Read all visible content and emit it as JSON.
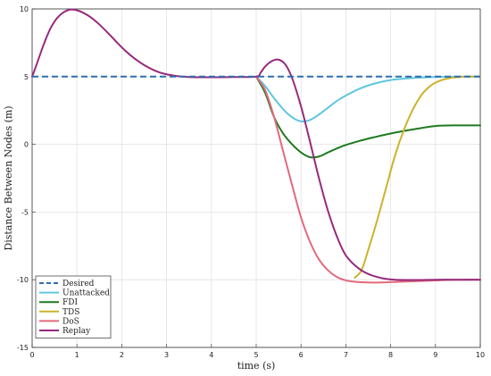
{
  "chart_data": {
    "type": "line",
    "xlabel": "time (s)",
    "ylabel": "Distance Between Nodes (m)",
    "xlim": [
      0,
      10
    ],
    "ylim": [
      -15,
      10
    ],
    "xticks": [
      "0",
      "1",
      "2",
      "3",
      "4",
      "5",
      "6",
      "7",
      "8",
      "9",
      "10"
    ],
    "yticks": [
      "10",
      "5",
      "0",
      "-5",
      "-10",
      "-15"
    ],
    "grid": true,
    "legend_position": "bottom-left",
    "series": [
      {
        "name": "Desired",
        "color": "#2e6fb0",
        "style": "dashed",
        "x": [
          0,
          10
        ],
        "y": [
          5,
          5
        ]
      },
      {
        "name": "Unattacked",
        "color": "#5ec6e0",
        "style": "solid",
        "x": [
          5.0,
          5.2,
          5.4,
          5.6,
          5.8,
          6.0,
          6.2,
          6.4,
          6.6,
          6.8,
          7.0,
          7.3,
          7.6,
          8.0,
          8.5,
          9.0,
          9.5,
          10.0
        ],
        "y": [
          5.0,
          4.3,
          3.4,
          2.6,
          2.0,
          1.7,
          1.8,
          2.2,
          2.7,
          3.2,
          3.6,
          4.1,
          4.45,
          4.75,
          4.9,
          4.97,
          5.0,
          5.0
        ]
      },
      {
        "name": "FDI",
        "color": "#1e7a1e",
        "style": "solid",
        "x": [
          5.0,
          5.2,
          5.4,
          5.6,
          5.8,
          6.0,
          6.2,
          6.4,
          6.6,
          6.8,
          7.0,
          7.3,
          7.6,
          8.0,
          8.5,
          9.0,
          9.5,
          10.0
        ],
        "y": [
          5.0,
          3.8,
          2.0,
          0.8,
          0.0,
          -0.6,
          -0.95,
          -0.9,
          -0.6,
          -0.3,
          -0.05,
          0.25,
          0.5,
          0.8,
          1.1,
          1.35,
          1.4,
          1.4
        ]
      },
      {
        "name": "TDS",
        "color": "#cdb22c",
        "style": "solid",
        "x": [
          7.2,
          7.35,
          7.5,
          7.7,
          7.9,
          8.1,
          8.3,
          8.5,
          8.7,
          8.9,
          9.1,
          9.3,
          9.5,
          9.7,
          9.85,
          10.0
        ],
        "y": [
          -9.85,
          -9.3,
          -7.8,
          -5.6,
          -3.2,
          -0.8,
          1.1,
          2.6,
          3.7,
          4.35,
          4.7,
          4.88,
          4.96,
          5.0,
          5.0,
          5.0
        ]
      },
      {
        "name": "DoS",
        "color": "#e26a7c",
        "style": "solid",
        "x": [
          5.0,
          5.2,
          5.4,
          5.6,
          5.8,
          6.0,
          6.2,
          6.4,
          6.6,
          6.8,
          7.0,
          7.2,
          7.5,
          7.8,
          8.2,
          8.6,
          9.0,
          9.5,
          10.0
        ],
        "y": [
          5.0,
          4.0,
          2.0,
          -0.5,
          -3.0,
          -5.4,
          -7.2,
          -8.5,
          -9.3,
          -9.8,
          -10.05,
          -10.15,
          -10.2,
          -10.2,
          -10.15,
          -10.1,
          -10.05,
          -10.0,
          -10.0
        ]
      },
      {
        "name": "Replay",
        "color": "#962a7c",
        "style": "solid",
        "x": [
          0.0,
          0.1,
          0.25,
          0.4,
          0.55,
          0.7,
          0.85,
          1.0,
          1.15,
          1.3,
          1.5,
          1.7,
          1.9,
          2.1,
          2.3,
          2.5,
          2.7,
          2.9,
          3.2,
          3.5,
          4.0,
          4.5,
          5.0,
          5.1,
          5.2,
          5.35,
          5.5,
          5.65,
          5.8,
          6.0,
          6.2,
          6.4,
          6.6,
          6.8,
          7.0,
          7.3,
          7.6,
          8.0,
          8.5,
          9.0,
          9.5,
          10.0
        ],
        "y": [
          5.0,
          5.9,
          7.3,
          8.5,
          9.3,
          9.75,
          9.95,
          9.9,
          9.7,
          9.4,
          8.85,
          8.2,
          7.5,
          6.85,
          6.3,
          5.85,
          5.5,
          5.25,
          5.05,
          4.97,
          4.95,
          4.97,
          5.0,
          5.3,
          5.75,
          6.15,
          6.25,
          5.9,
          4.9,
          2.8,
          0.2,
          -2.5,
          -4.9,
          -6.8,
          -8.2,
          -9.2,
          -9.7,
          -9.98,
          -10.02,
          -10.0,
          -10.0,
          -10.0
        ]
      }
    ]
  }
}
